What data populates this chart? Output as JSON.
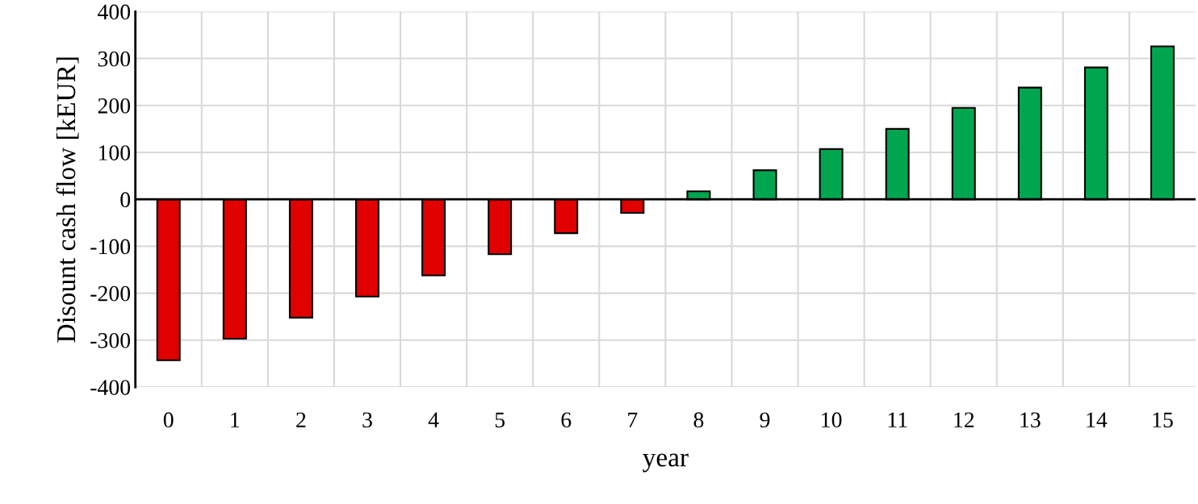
{
  "chart_data": {
    "type": "bar",
    "xlabel": "year",
    "ylabel": "Disount cash flow [kEUR]",
    "categories": [
      "0",
      "1",
      "2",
      "3",
      "4",
      "5",
      "6",
      "7",
      "8",
      "9",
      "10",
      "11",
      "12",
      "13",
      "14",
      "15"
    ],
    "values": [
      -343,
      -297,
      -252,
      -207,
      -162,
      -117,
      -72,
      -29,
      17,
      62,
      107,
      150,
      195,
      238,
      281,
      326
    ],
    "colors": [
      "#e00000",
      "#e00000",
      "#e00000",
      "#e00000",
      "#e00000",
      "#e00000",
      "#e00000",
      "#e00000",
      "#00a550",
      "#00a550",
      "#00a550",
      "#00a550",
      "#00a550",
      "#00a550",
      "#00a550",
      "#00a550"
    ],
    "ylim": [
      -400,
      400
    ],
    "yticks": [
      {
        "value": -400,
        "label": "-400"
      },
      {
        "value": -300,
        "label": "-300"
      },
      {
        "value": -200,
        "label": "-200"
      },
      {
        "value": -100,
        "label": "-100"
      },
      0,
      100,
      200,
      300,
      400
    ],
    "grid": true
  }
}
